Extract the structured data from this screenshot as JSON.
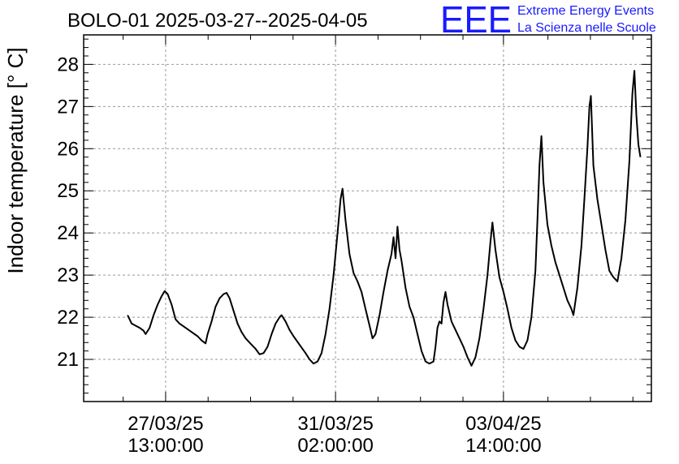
{
  "chart_data": {
    "type": "line",
    "title": "BOLO-01 2025-03-27--2025-04-05",
    "xlabel": "",
    "ylabel": "Indoor temperature [° C]",
    "ylim": [
      20,
      28.7
    ],
    "yticks": [
      21,
      22,
      23,
      24,
      25,
      26,
      27,
      28
    ],
    "xlim": [
      "2025-03-25T20:00",
      "2025-04-06T16:00"
    ],
    "xticks": [
      {
        "date": "27/03/25",
        "time": "13:00:00",
        "x": "2025-03-27T13:00"
      },
      {
        "date": "31/03/25",
        "time": "02:00:00",
        "x": "2025-03-31T02:00"
      },
      {
        "date": "03/04/25",
        "time": "14:00:00",
        "x": "2025-04-03T14:00"
      }
    ],
    "grid": true,
    "series": [
      {
        "color": "#000000",
        "points": [
          [
            "2025-03-26T18:00",
            22.05
          ],
          [
            "2025-03-26T20:00",
            21.85
          ],
          [
            "2025-03-26T22:00",
            21.8
          ],
          [
            "2025-03-27T00:00",
            21.75
          ],
          [
            "2025-03-27T02:00",
            21.68
          ],
          [
            "2025-03-27T03:00",
            21.6
          ],
          [
            "2025-03-27T05:00",
            21.75
          ],
          [
            "2025-03-27T07:00",
            22.05
          ],
          [
            "2025-03-27T09:00",
            22.3
          ],
          [
            "2025-03-27T11:00",
            22.5
          ],
          [
            "2025-03-27T12:30",
            22.62
          ],
          [
            "2025-03-27T14:00",
            22.55
          ],
          [
            "2025-03-27T16:00",
            22.3
          ],
          [
            "2025-03-27T18:00",
            21.95
          ],
          [
            "2025-03-27T20:00",
            21.85
          ],
          [
            "2025-03-27T23:00",
            21.75
          ],
          [
            "2025-03-28T02:00",
            21.65
          ],
          [
            "2025-03-28T05:00",
            21.55
          ],
          [
            "2025-03-28T07:00",
            21.45
          ],
          [
            "2025-03-28T09:00",
            21.38
          ],
          [
            "2025-03-28T10:00",
            21.6
          ],
          [
            "2025-03-28T12:00",
            21.9
          ],
          [
            "2025-03-28T14:00",
            22.25
          ],
          [
            "2025-03-28T16:00",
            22.45
          ],
          [
            "2025-03-28T18:00",
            22.55
          ],
          [
            "2025-03-28T19:30",
            22.58
          ],
          [
            "2025-03-28T21:00",
            22.45
          ],
          [
            "2025-03-28T23:00",
            22.15
          ],
          [
            "2025-03-29T01:00",
            21.85
          ],
          [
            "2025-03-29T03:00",
            21.65
          ],
          [
            "2025-03-29T05:00",
            21.5
          ],
          [
            "2025-03-29T08:00",
            21.35
          ],
          [
            "2025-03-29T10:00",
            21.25
          ],
          [
            "2025-03-29T12:00",
            21.12
          ],
          [
            "2025-03-29T14:00",
            21.15
          ],
          [
            "2025-03-29T16:00",
            21.3
          ],
          [
            "2025-03-29T18:00",
            21.6
          ],
          [
            "2025-03-29T20:00",
            21.85
          ],
          [
            "2025-03-29T22:00",
            22.0
          ],
          [
            "2025-03-29T23:00",
            22.05
          ],
          [
            "2025-03-30T01:00",
            21.9
          ],
          [
            "2025-03-30T03:00",
            21.7
          ],
          [
            "2025-03-30T05:00",
            21.55
          ],
          [
            "2025-03-30T08:00",
            21.35
          ],
          [
            "2025-03-30T11:00",
            21.15
          ],
          [
            "2025-03-30T13:00",
            21.0
          ],
          [
            "2025-03-30T15:00",
            20.9
          ],
          [
            "2025-03-30T17:00",
            20.95
          ],
          [
            "2025-03-30T19:00",
            21.15
          ],
          [
            "2025-03-30T21:00",
            21.6
          ],
          [
            "2025-03-30T23:00",
            22.2
          ],
          [
            "2025-03-31T01:00",
            23.0
          ],
          [
            "2025-03-31T03:00",
            24.0
          ],
          [
            "2025-03-31T04:30",
            24.8
          ],
          [
            "2025-03-31T05:30",
            25.05
          ],
          [
            "2025-03-31T07:00",
            24.3
          ],
          [
            "2025-03-31T09:00",
            23.5
          ],
          [
            "2025-03-31T11:00",
            23.05
          ],
          [
            "2025-03-31T13:00",
            22.85
          ],
          [
            "2025-03-31T15:00",
            22.6
          ],
          [
            "2025-03-31T17:00",
            22.2
          ],
          [
            "2025-03-31T19:00",
            21.8
          ],
          [
            "2025-03-31T20:30",
            21.5
          ],
          [
            "2025-03-31T22:00",
            21.6
          ],
          [
            "2025-04-01T00:00",
            22.05
          ],
          [
            "2025-04-01T02:00",
            22.6
          ],
          [
            "2025-04-01T04:00",
            23.1
          ],
          [
            "2025-04-01T06:00",
            23.5
          ],
          [
            "2025-04-01T07:00",
            23.9
          ],
          [
            "2025-04-01T08:00",
            23.4
          ],
          [
            "2025-04-01T09:00",
            24.15
          ],
          [
            "2025-04-01T10:00",
            23.6
          ],
          [
            "2025-04-01T11:00",
            23.35
          ],
          [
            "2025-04-01T13:00",
            22.7
          ],
          [
            "2025-04-01T15:00",
            22.25
          ],
          [
            "2025-04-01T17:00",
            22.0
          ],
          [
            "2025-04-01T19:00",
            21.6
          ],
          [
            "2025-04-01T21:00",
            21.2
          ],
          [
            "2025-04-01T23:00",
            20.95
          ],
          [
            "2025-04-02T01:00",
            20.9
          ],
          [
            "2025-04-02T03:00",
            20.95
          ],
          [
            "2025-04-02T04:00",
            21.3
          ],
          [
            "2025-04-02T05:00",
            21.75
          ],
          [
            "2025-04-02T06:00",
            21.9
          ],
          [
            "2025-04-02T07:00",
            21.85
          ],
          [
            "2025-04-02T08:00",
            22.35
          ],
          [
            "2025-04-02T09:00",
            22.6
          ],
          [
            "2025-04-02T10:00",
            22.3
          ],
          [
            "2025-04-02T12:00",
            21.9
          ],
          [
            "2025-04-02T14:00",
            21.7
          ],
          [
            "2025-04-02T16:00",
            21.5
          ],
          [
            "2025-04-02T18:00",
            21.3
          ],
          [
            "2025-04-02T20:00",
            21.05
          ],
          [
            "2025-04-02T22:00",
            20.85
          ],
          [
            "2025-04-03T00:00",
            21.05
          ],
          [
            "2025-04-03T02:00",
            21.5
          ],
          [
            "2025-04-03T04:00",
            22.2
          ],
          [
            "2025-04-03T06:00",
            23.0
          ],
          [
            "2025-04-03T07:30",
            23.8
          ],
          [
            "2025-04-03T08:30",
            24.25
          ],
          [
            "2025-04-03T10:00",
            23.6
          ],
          [
            "2025-04-03T12:00",
            22.95
          ],
          [
            "2025-04-03T14:00",
            22.6
          ],
          [
            "2025-04-03T16:00",
            22.2
          ],
          [
            "2025-04-03T18:00",
            21.75
          ],
          [
            "2025-04-03T20:00",
            21.45
          ],
          [
            "2025-04-03T22:00",
            21.3
          ],
          [
            "2025-04-04T00:00",
            21.25
          ],
          [
            "2025-04-04T02:00",
            21.45
          ],
          [
            "2025-04-04T04:00",
            22.0
          ],
          [
            "2025-04-04T06:00",
            23.1
          ],
          [
            "2025-04-04T07:00",
            24.3
          ],
          [
            "2025-04-04T08:00",
            25.6
          ],
          [
            "2025-04-04T09:00",
            26.3
          ],
          [
            "2025-04-04T10:00",
            25.2
          ],
          [
            "2025-04-04T12:00",
            24.2
          ],
          [
            "2025-04-04T14:00",
            23.7
          ],
          [
            "2025-04-04T16:00",
            23.3
          ],
          [
            "2025-04-04T18:00",
            23.0
          ],
          [
            "2025-04-04T20:00",
            22.7
          ],
          [
            "2025-04-04T22:00",
            22.4
          ],
          [
            "2025-04-05T00:00",
            22.2
          ],
          [
            "2025-04-05T01:00",
            22.05
          ],
          [
            "2025-04-05T03:00",
            22.7
          ],
          [
            "2025-04-05T05:00",
            23.7
          ],
          [
            "2025-04-05T06:30",
            24.8
          ],
          [
            "2025-04-05T08:00",
            26.0
          ],
          [
            "2025-04-05T09:00",
            27.0
          ],
          [
            "2025-04-05T09:45",
            27.25
          ],
          [
            "2025-04-05T11:00",
            25.6
          ],
          [
            "2025-04-05T13:00",
            24.8
          ],
          [
            "2025-04-05T15:00",
            24.2
          ],
          [
            "2025-04-05T17:00",
            23.6
          ],
          [
            "2025-04-05T19:00",
            23.1
          ],
          [
            "2025-04-05T21:00",
            22.95
          ],
          [
            "2025-04-05T23:00",
            22.85
          ],
          [
            "2025-04-06T01:00",
            23.4
          ],
          [
            "2025-04-06T03:00",
            24.3
          ],
          [
            "2025-04-06T05:00",
            25.7
          ],
          [
            "2025-04-06T06:30",
            27.3
          ],
          [
            "2025-04-06T07:30",
            27.85
          ],
          [
            "2025-04-06T08:30",
            26.8
          ],
          [
            "2025-04-06T09:30",
            26.1
          ],
          [
            "2025-04-06T10:30",
            25.8
          ]
        ]
      }
    ]
  },
  "branding": {
    "logo_letters": "EEE",
    "line1": "Extreme Energy Events",
    "line2": "La Scienza nelle Scuole",
    "color": "#1a1aff"
  }
}
